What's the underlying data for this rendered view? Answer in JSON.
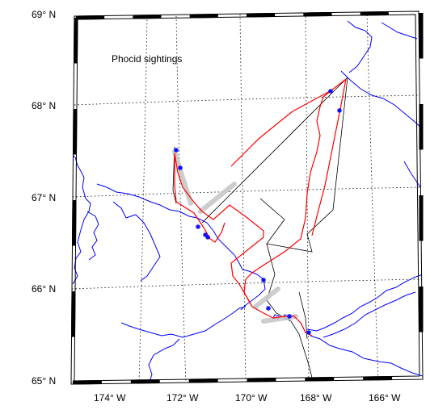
{
  "map": {
    "title": "Phocid sightings",
    "lat_labels": [
      {
        "text": "69° N",
        "value": 69
      },
      {
        "text": "68° N",
        "value": 68
      },
      {
        "text": "67° N",
        "value": 67
      },
      {
        "text": "66° N",
        "value": 66
      },
      {
        "text": "65° N",
        "value": 65
      }
    ],
    "lon_labels": [
      {
        "text": "174° W",
        "value": -174
      },
      {
        "text": "172° W",
        "value": -172
      },
      {
        "text": "170° W",
        "value": -170
      },
      {
        "text": "168° W",
        "value": -168
      },
      {
        "text": "166° W",
        "value": -166
      }
    ],
    "colors": {
      "coastline": "#0000ff",
      "track": "#ff0000",
      "cruise_line": "#000000",
      "highlight": "#c8c8c8",
      "sighting": "#0000ff",
      "grid": "#000000"
    },
    "sighting_marker_icon": "asterisk-icon"
  }
}
